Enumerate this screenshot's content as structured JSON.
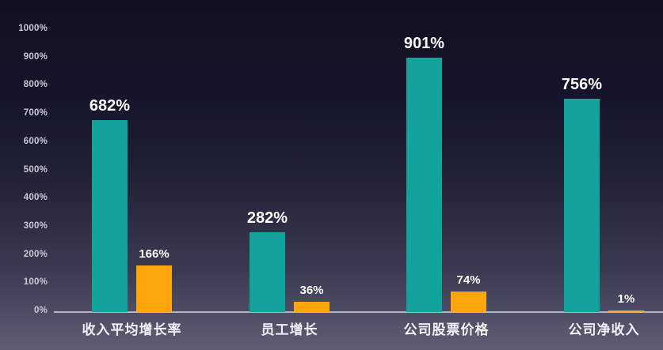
{
  "chart_data": {
    "type": "bar",
    "title": "",
    "xlabel": "",
    "ylabel": "",
    "categories": [
      "收入平均增长率",
      "员工增长",
      "公司股票价格",
      "公司净收入"
    ],
    "series": [
      {
        "name": "teal-series",
        "color": "#14a29d",
        "values": [
          682,
          282,
          901,
          756
        ],
        "labels": [
          "682%",
          "282%",
          "901%",
          "756%"
        ]
      },
      {
        "name": "orange-series",
        "color": "#ffa60f",
        "values": [
          166,
          36,
          74,
          1
        ],
        "labels": [
          "166%",
          "36%",
          "74%",
          "1%"
        ]
      }
    ],
    "ylim": [
      0,
      1000
    ],
    "y_tick_step": 100,
    "y_ticks": [
      "0%",
      "100%",
      "200%",
      "300%",
      "400%",
      "500%",
      "600%",
      "700%",
      "800%",
      "900%",
      "1000%"
    ],
    "grid": false,
    "legend_position": "none"
  },
  "colors": {
    "background_top": "#101120",
    "background_bottom": "#5e5e75",
    "bar_teal": "#14a29d",
    "bar_orange": "#ffa60f",
    "axis_line": "#b4b5c5",
    "tick_text": "#c9cad6",
    "value_text": "#ffffff",
    "category_text": "#f2f2f6"
  }
}
